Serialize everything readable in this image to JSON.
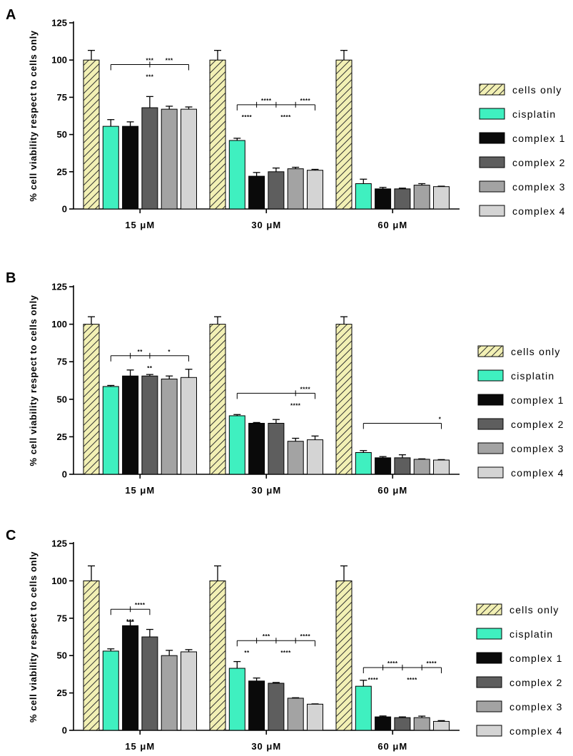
{
  "figure": {
    "colors": {
      "cells_only_fill": "#f2f0b4",
      "cells_only_hatch": "#333333",
      "cisplatin": "#3ff0c0",
      "complex_1": "#0a0a0a",
      "complex_2": "#5e5e5e",
      "complex_3": "#a3a3a3",
      "complex_4": "#d4d4d4",
      "axis": "#000000"
    }
  },
  "chart_data": [
    {
      "type": "bar",
      "panel": "A",
      "ylabel": "% cell viability respect to cells only",
      "ylim": [
        0,
        125
      ],
      "yticks": [
        "0",
        "25",
        "50",
        "75",
        "100",
        "125"
      ],
      "categories": [
        "15 μM",
        "30 μM",
        "60 μM"
      ],
      "series": [
        {
          "name": "cells only",
          "values": [
            100,
            100,
            100
          ],
          "errors": [
            6.5,
            6.5,
            6.5
          ]
        },
        {
          "name": "cisplatin",
          "values": [
            55.5,
            46,
            17
          ],
          "errors": [
            4.5,
            1.5,
            3
          ]
        },
        {
          "name": "complex 1",
          "values": [
            55.5,
            22,
            13.5
          ],
          "errors": [
            3,
            2.5,
            1
          ]
        },
        {
          "name": "complex 2",
          "values": [
            68,
            25,
            13.5
          ],
          "errors": [
            7.5,
            2.5,
            0.5
          ]
        },
        {
          "name": "complex 3",
          "values": [
            67,
            27,
            16
          ],
          "errors": [
            2,
            1,
            1
          ]
        },
        {
          "name": "complex 4",
          "values": [
            67,
            26,
            15
          ],
          "errors": [
            1.5,
            0.6,
            0.3
          ]
        }
      ],
      "legend": [
        "cells only",
        "cisplatin",
        "complex 1",
        "complex 2",
        "complex 3",
        "complex 4"
      ],
      "annotations": [
        {
          "group": 0,
          "from": 1,
          "to": [
            3,
            5
          ],
          "y": 97,
          "labels_above": [
            "***",
            "***"
          ],
          "label_below": "***"
        },
        {
          "group": 1,
          "from": 1,
          "to": [
            2,
            3,
            4,
            5
          ],
          "y": 70,
          "labels_above": [
            "****",
            "****"
          ],
          "labels_below": [
            "****",
            "****"
          ]
        }
      ]
    },
    {
      "type": "bar",
      "panel": "B",
      "ylabel": "% cell viability respect to cells only",
      "ylim": [
        0,
        125
      ],
      "yticks": [
        "0",
        "25",
        "50",
        "75",
        "100",
        "125"
      ],
      "categories": [
        "15 μM",
        "30 μM",
        "60 μM"
      ],
      "series": [
        {
          "name": "cells only",
          "values": [
            100,
            100,
            100
          ],
          "errors": [
            5,
            5,
            5
          ]
        },
        {
          "name": "cisplatin",
          "values": [
            58.5,
            39,
            14.5
          ],
          "errors": [
            0.7,
            0.8,
            1.3
          ]
        },
        {
          "name": "complex 1",
          "values": [
            65.5,
            34,
            11
          ],
          "errors": [
            4,
            0.5,
            0.8
          ]
        },
        {
          "name": "complex 2",
          "values": [
            65.5,
            34,
            11
          ],
          "errors": [
            1,
            2.5,
            2
          ]
        },
        {
          "name": "complex 3",
          "values": [
            63.5,
            22,
            10
          ],
          "errors": [
            2,
            2,
            0.3
          ]
        },
        {
          "name": "complex 4",
          "values": [
            64.5,
            23,
            9.5
          ],
          "errors": [
            5.5,
            2.5,
            0.3
          ]
        }
      ],
      "legend": [
        "cells only",
        "cisplatin",
        "complex 1",
        "complex 2",
        "complex 3",
        "complex 4"
      ],
      "annotations": [
        {
          "group": 0,
          "from": 1,
          "to": [
            2,
            3,
            5
          ],
          "y": 79,
          "labels_above": [
            "**",
            "*"
          ],
          "label_below": "**"
        },
        {
          "group": 1,
          "from": 1,
          "to": [
            4,
            5
          ],
          "y": 54,
          "labels_above": [
            "****"
          ],
          "label_below": "****"
        },
        {
          "group": 2,
          "from": 1,
          "to": [
            5
          ],
          "y": 34,
          "labels_above": [
            "*"
          ]
        }
      ]
    },
    {
      "type": "bar",
      "panel": "C",
      "ylabel": "% cell viability respect to cells only",
      "ylim": [
        0,
        125
      ],
      "yticks": [
        "0",
        "25",
        "50",
        "75",
        "100",
        "125"
      ],
      "categories": [
        "15 μM",
        "30 μM",
        "60 μM"
      ],
      "series": [
        {
          "name": "cells only",
          "values": [
            100,
            100,
            100
          ],
          "errors": [
            10,
            10,
            10
          ]
        },
        {
          "name": "cisplatin",
          "values": [
            53,
            41.5,
            29.5
          ],
          "errors": [
            1.5,
            4.5,
            4
          ]
        },
        {
          "name": "complex 1",
          "values": [
            70,
            33,
            9
          ],
          "errors": [
            3,
            2,
            0.6
          ]
        },
        {
          "name": "complex 2",
          "values": [
            62.5,
            31.5,
            8.5
          ],
          "errors": [
            5,
            0.5,
            0.5
          ]
        },
        {
          "name": "complex 3",
          "values": [
            50,
            21.5,
            8.5
          ],
          "errors": [
            3.5,
            0.3,
            1
          ]
        },
        {
          "name": "complex 4",
          "values": [
            52.5,
            17.5,
            6
          ],
          "errors": [
            1.5,
            0.2,
            0.5
          ]
        }
      ],
      "legend": [
        "cells only",
        "cisplatin",
        "complex 1",
        "complex 2",
        "complex 3",
        "complex 4"
      ],
      "annotations": [
        {
          "group": 0,
          "from": 1,
          "to": [
            2,
            3
          ],
          "y": 81,
          "labels_above": [
            "****"
          ],
          "label_below": "***"
        },
        {
          "group": 1,
          "from": 1,
          "to": [
            2,
            3,
            4,
            5
          ],
          "y": 60,
          "labels_above": [
            "***",
            "****"
          ],
          "labels_below": [
            "**",
            "****"
          ]
        },
        {
          "group": 2,
          "from": 1,
          "to": [
            2,
            3,
            4,
            5
          ],
          "y": 42,
          "labels_above": [
            "****",
            "****"
          ],
          "labels_below": [
            "****",
            "****"
          ]
        }
      ]
    }
  ]
}
